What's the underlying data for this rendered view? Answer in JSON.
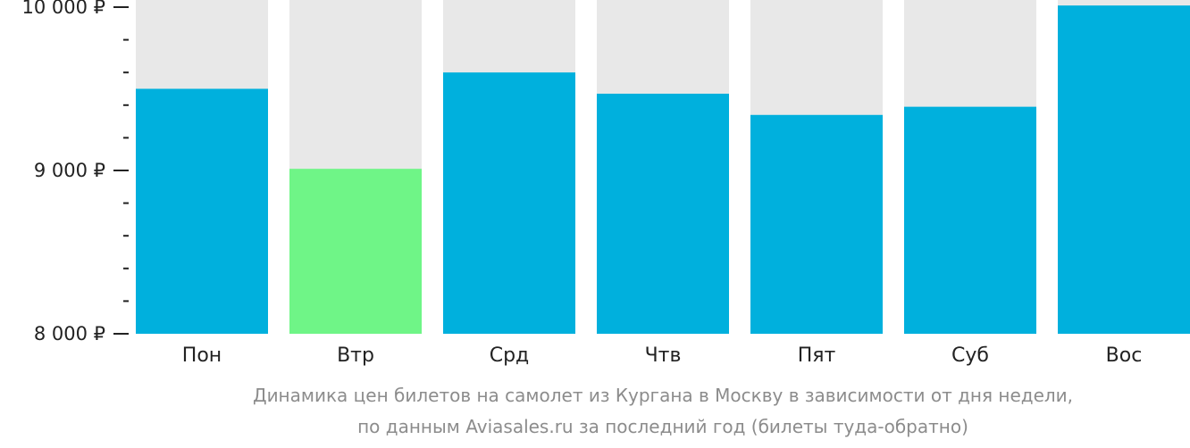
{
  "chart_data": {
    "type": "bar",
    "categories": [
      "Пон",
      "Втр",
      "Срд",
      "Чтв",
      "Пят",
      "Суб",
      "Вос"
    ],
    "values": [
      9500,
      9010,
      9600,
      9470,
      9340,
      9390,
      10010
    ],
    "ylim": [
      8000,
      10000
    ],
    "yticks": [
      {
        "value": 10000,
        "label": "10 000 ₽"
      },
      {
        "value": 9000,
        "label": "9 000 ₽"
      },
      {
        "value": 8000,
        "label": "8 000 ₽"
      }
    ],
    "minor_tick_step": 200,
    "grid": false,
    "highlight_index": 1,
    "colors": {
      "bar": "#00b0dd",
      "highlight": "#6ff587",
      "track": "#e8e8e8",
      "axis": "#222222"
    }
  },
  "caption": {
    "line1": "Динамика цен билетов на самолет из Кургана в Москву в зависимости от дня недели,",
    "line2": "по данным Aviasales.ru за последний год (билеты туда-обратно)"
  }
}
